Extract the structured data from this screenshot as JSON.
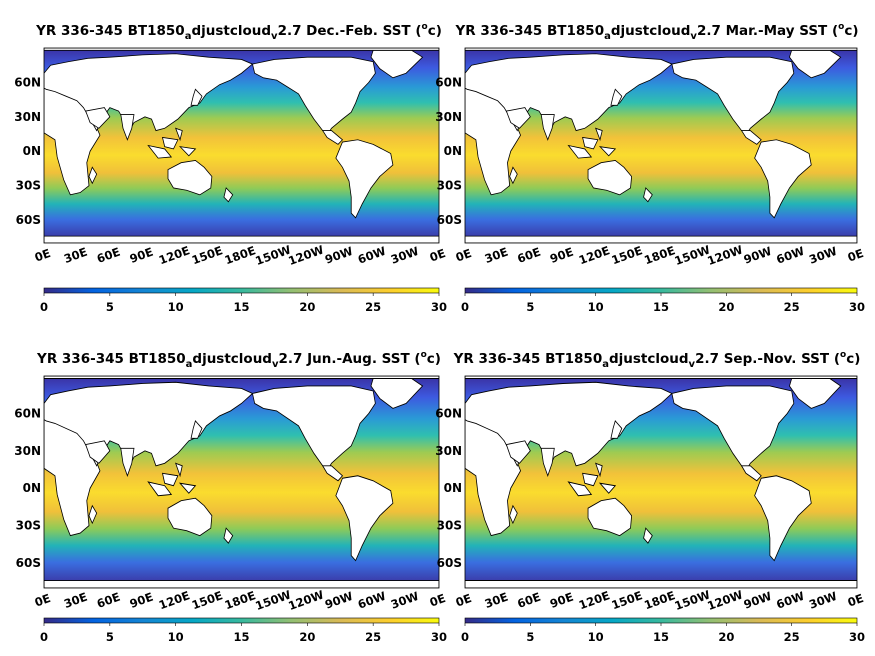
{
  "chart_data": [
    {
      "type": "heatmap",
      "title_parts": [
        "YR 336-345 BT1850",
        "a",
        "djustcloud",
        "v",
        "2.7 Dec.-Feb. SST (",
        "o",
        "c)"
      ],
      "title": "YR 336-345 BT1850_adjustcloud_v2.7 Dec.-Feb. SST (oc)",
      "season": "Dec.-Feb.",
      "x_ticks": [
        "0E",
        "30E",
        "60E",
        "90E",
        "120E",
        "150E",
        "180E",
        "150W",
        "120W",
        "90W",
        "60W",
        "30W",
        "0E"
      ],
      "y_ticks": [
        "60N",
        "30N",
        "0N",
        "30S",
        "60S"
      ],
      "colorbar_ticks": [
        "0",
        "5",
        "10",
        "15",
        "20",
        "25",
        "30"
      ],
      "clim": [
        0,
        30
      ],
      "colormap": "parula",
      "lon_range": [
        0,
        360
      ],
      "lat_range": [
        -80,
        90
      ]
    },
    {
      "type": "heatmap",
      "title_parts": [
        "YR 336-345 BT1850",
        "a",
        "djustcloud",
        "v",
        "2.7 Mar.-May SST (",
        "o",
        "c)"
      ],
      "title": "YR 336-345 BT1850_adjustcloud_v2.7 Mar.-May SST (oc)",
      "season": "Mar.-May",
      "x_ticks": [
        "0E",
        "30E",
        "60E",
        "90E",
        "120E",
        "150E",
        "180E",
        "150W",
        "120W",
        "90W",
        "60W",
        "30W",
        "0E"
      ],
      "y_ticks": [
        "60N",
        "30N",
        "0N",
        "30S",
        "60S"
      ],
      "colorbar_ticks": [
        "0",
        "5",
        "10",
        "15",
        "20",
        "25",
        "30"
      ],
      "clim": [
        0,
        30
      ],
      "colormap": "parula",
      "lon_range": [
        0,
        360
      ],
      "lat_range": [
        -80,
        90
      ]
    },
    {
      "type": "heatmap",
      "title_parts": [
        "YR 336-345 BT1850",
        "a",
        "djustcloud",
        "v",
        "2.7 Jun.-Aug. SST (",
        "o",
        "c)"
      ],
      "title": "YR 336-345 BT1850_adjustcloud_v2.7 Jun.-Aug. SST (oc)",
      "season": "Jun.-Aug.",
      "x_ticks": [
        "0E",
        "30E",
        "60E",
        "90E",
        "120E",
        "150E",
        "180E",
        "150W",
        "120W",
        "90W",
        "60W",
        "30W",
        "0E"
      ],
      "y_ticks": [
        "60N",
        "30N",
        "0N",
        "30S",
        "60S"
      ],
      "colorbar_ticks": [
        "0",
        "5",
        "10",
        "15",
        "20",
        "25",
        "30"
      ],
      "clim": [
        0,
        30
      ],
      "colormap": "parula",
      "lon_range": [
        0,
        360
      ],
      "lat_range": [
        -80,
        90
      ]
    },
    {
      "type": "heatmap",
      "title_parts": [
        "YR 336-345 BT1850",
        "a",
        "djustcloud",
        "v",
        "2.7 Sep.-Nov. SST (",
        "o",
        "c)"
      ],
      "title": "YR 336-345 BT1850_adjustcloud_v2.7 Sep.-Nov. SST (oc)",
      "season": "Sep.-Nov.",
      "x_ticks": [
        "0E",
        "30E",
        "60E",
        "90E",
        "120E",
        "150E",
        "180E",
        "150W",
        "120W",
        "90W",
        "60W",
        "30W",
        "0E"
      ],
      "y_ticks": [
        "60N",
        "30N",
        "0N",
        "30S",
        "60S"
      ],
      "colorbar_ticks": [
        "0",
        "5",
        "10",
        "15",
        "20",
        "25",
        "30"
      ],
      "clim": [
        0,
        30
      ],
      "colormap": "parula",
      "lon_range": [
        0,
        360
      ],
      "lat_range": [
        -80,
        90
      ]
    }
  ]
}
